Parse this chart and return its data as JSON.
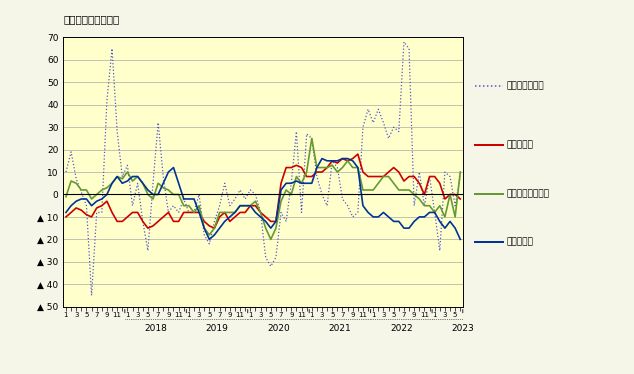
{
  "title": "（前年同月比、％）",
  "background_color": "#F5F5E8",
  "plot_bg_color": "#FFFFCC",
  "ylim_min": -50,
  "ylim_max": 70,
  "yticks": [
    70,
    60,
    50,
    40,
    30,
    20,
    10,
    0,
    -10,
    -20,
    -30,
    -40,
    -50
  ],
  "ytick_labels": [
    "70",
    "60",
    "50",
    "40",
    "30",
    "20",
    "10",
    "0",
    "▲ 10",
    "▲ 20",
    "▲ 30",
    "▲ 40",
    "▲ 50"
  ],
  "legend_entries": [
    {
      "label": "分譲マンション",
      "color": "#5555CC",
      "linestyle": "dotted",
      "linewidth": 0.9
    },
    {
      "label": "貸家（赤）",
      "color": "#CC0000",
      "linestyle": "solid",
      "linewidth": 1.2
    },
    {
      "label": "分譲一戸建（緑）",
      "color": "#669933",
      "linestyle": "solid",
      "linewidth": 1.2
    },
    {
      "label": "持家（青）",
      "color": "#003399",
      "linestyle": "solid",
      "linewidth": 1.2
    }
  ],
  "x_year_labels": [
    "2018",
    "2019",
    "2020",
    "2021",
    "2022",
    "2023"
  ],
  "n_months": 78,
  "mansion": [
    10,
    19,
    7,
    1,
    -5,
    -45,
    -8,
    -8,
    42,
    65,
    28,
    8,
    13,
    -5,
    5,
    -12,
    -25,
    5,
    32,
    8,
    -8,
    -5,
    -8,
    -2,
    -8,
    -8,
    0,
    -18,
    -22,
    -12,
    -5,
    5,
    -5,
    -2,
    2,
    -2,
    2,
    0,
    -8,
    -28,
    -32,
    -28,
    -8,
    -12,
    5,
    28,
    -8,
    27,
    25,
    8,
    0,
    -5,
    15,
    12,
    -2,
    -5,
    -10,
    -8,
    30,
    38,
    32,
    38,
    32,
    25,
    30,
    28,
    68,
    65,
    -5,
    10,
    -5,
    8,
    -8,
    -25,
    10,
    8,
    -5,
    8
  ],
  "chintai": [
    -10,
    -8,
    -6,
    -7,
    -9,
    -10,
    -6,
    -5,
    -3,
    -8,
    -12,
    -12,
    -10,
    -8,
    -8,
    -12,
    -15,
    -14,
    -12,
    -10,
    -8,
    -12,
    -12,
    -8,
    -8,
    -8,
    -8,
    -12,
    -14,
    -15,
    -10,
    -8,
    -12,
    -10,
    -8,
    -8,
    -5,
    -5,
    -8,
    -10,
    -12,
    -12,
    5,
    12,
    12,
    13,
    12,
    8,
    8,
    10,
    10,
    12,
    15,
    14,
    16,
    15,
    16,
    18,
    10,
    8,
    8,
    8,
    8,
    10,
    12,
    10,
    6,
    8,
    8,
    5,
    0,
    8,
    8,
    5,
    -2,
    0,
    0,
    -2
  ],
  "ikkodate": [
    -1,
    6,
    5,
    2,
    2,
    -2,
    0,
    2,
    3,
    5,
    8,
    7,
    10,
    6,
    8,
    5,
    0,
    -2,
    5,
    3,
    2,
    0,
    0,
    -5,
    -5,
    -8,
    -5,
    -15,
    -18,
    -15,
    -8,
    -8,
    -8,
    -8,
    -5,
    -5,
    -5,
    -3,
    -8,
    -15,
    -20,
    -15,
    -3,
    2,
    0,
    8,
    5,
    10,
    25,
    12,
    12,
    12,
    13,
    10,
    12,
    15,
    12,
    12,
    2,
    2,
    2,
    5,
    8,
    8,
    5,
    2,
    2,
    2,
    0,
    -2,
    -5,
    -5,
    -8,
    -5,
    -10,
    0,
    -10,
    10
  ],
  "mochiie": [
    -8,
    -5,
    -3,
    -2,
    -2,
    -5,
    -3,
    -2,
    0,
    5,
    8,
    5,
    6,
    8,
    8,
    5,
    2,
    0,
    0,
    5,
    10,
    12,
    5,
    -2,
    -2,
    -2,
    -8,
    -15,
    -20,
    -18,
    -15,
    -12,
    -10,
    -8,
    -5,
    -5,
    -5,
    -8,
    -10,
    -12,
    -15,
    -12,
    2,
    5,
    5,
    6,
    5,
    5,
    5,
    12,
    16,
    15,
    15,
    15,
    16,
    16,
    15,
    12,
    -5,
    -8,
    -10,
    -10,
    -8,
    -10,
    -12,
    -12,
    -15,
    -15,
    -12,
    -10,
    -10,
    -8,
    -8,
    -12,
    -15,
    -12,
    -15,
    -20
  ]
}
